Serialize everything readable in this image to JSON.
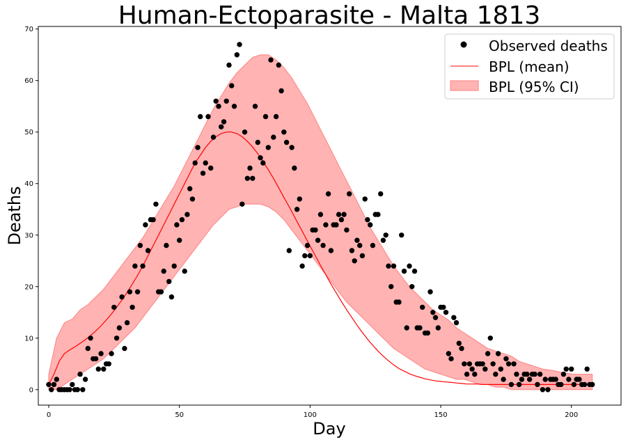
{
  "chart_data": {
    "type": "scatter",
    "title": "Human-Ectoparasite - Malta 1813",
    "xlabel": "Day",
    "ylabel": "Deaths",
    "xlim": [
      -4,
      219
    ],
    "ylim": [
      -3,
      70.5
    ],
    "xticks": [
      0,
      50,
      100,
      150,
      200
    ],
    "yticks": [
      0,
      10,
      20,
      30,
      40,
      50,
      60,
      70
    ],
    "grid": false,
    "legend_position": "top-right",
    "legend": [
      {
        "label": "Observed deaths",
        "marker": "dot",
        "color": "#000000"
      },
      {
        "label": "BPL (mean)",
        "marker": "line",
        "color": "#ff0000"
      },
      {
        "label": "BPL (95% CI)",
        "marker": "patch",
        "color": "#ff9999"
      }
    ],
    "observed": [
      [
        0,
        1
      ],
      [
        1,
        0
      ],
      [
        2,
        1
      ],
      [
        3,
        2
      ],
      [
        4,
        0
      ],
      [
        5,
        0
      ],
      [
        6,
        0
      ],
      [
        7,
        0
      ],
      [
        8,
        0
      ],
      [
        9,
        1
      ],
      [
        10,
        0
      ],
      [
        11,
        0
      ],
      [
        12,
        3
      ],
      [
        13,
        0
      ],
      [
        14,
        2
      ],
      [
        15,
        8
      ],
      [
        16,
        10
      ],
      [
        17,
        6
      ],
      [
        18,
        6
      ],
      [
        19,
        4
      ],
      [
        20,
        7
      ],
      [
        21,
        4
      ],
      [
        22,
        5
      ],
      [
        23,
        5
      ],
      [
        24,
        7
      ],
      [
        25,
        16
      ],
      [
        26,
        10
      ],
      [
        27,
        12
      ],
      [
        28,
        18
      ],
      [
        29,
        8
      ],
      [
        30,
        13
      ],
      [
        31,
        19
      ],
      [
        32,
        16
      ],
      [
        33,
        24
      ],
      [
        34,
        19
      ],
      [
        35,
        28
      ],
      [
        36,
        24
      ],
      [
        37,
        32
      ],
      [
        38,
        27
      ],
      [
        39,
        33
      ],
      [
        40,
        33
      ],
      [
        41,
        36
      ],
      [
        42,
        19
      ],
      [
        43,
        19
      ],
      [
        44,
        23
      ],
      [
        45,
        28
      ],
      [
        46,
        21
      ],
      [
        47,
        18
      ],
      [
        48,
        24
      ],
      [
        49,
        32
      ],
      [
        50,
        29
      ],
      [
        51,
        33
      ],
      [
        52,
        23
      ],
      [
        53,
        34
      ],
      [
        54,
        39
      ],
      [
        55,
        37
      ],
      [
        56,
        44
      ],
      [
        57,
        47
      ],
      [
        58,
        53
      ],
      [
        59,
        42
      ],
      [
        60,
        44
      ],
      [
        61,
        53
      ],
      [
        62,
        43
      ],
      [
        63,
        49
      ],
      [
        64,
        56
      ],
      [
        65,
        55
      ],
      [
        66,
        51
      ],
      [
        67,
        52
      ],
      [
        68,
        56
      ],
      [
        69,
        63
      ],
      [
        70,
        59
      ],
      [
        71,
        55
      ],
      [
        72,
        65
      ],
      [
        73,
        67
      ],
      [
        74,
        36
      ],
      [
        75,
        50
      ],
      [
        76,
        41
      ],
      [
        77,
        43
      ],
      [
        78,
        41
      ],
      [
        79,
        55
      ],
      [
        80,
        48
      ],
      [
        81,
        45
      ],
      [
        82,
        44
      ],
      [
        83,
        53
      ],
      [
        84,
        47
      ],
      [
        85,
        64
      ],
      [
        86,
        49
      ],
      [
        87,
        53
      ],
      [
        88,
        63
      ],
      [
        89,
        58
      ],
      [
        90,
        50
      ],
      [
        91,
        48
      ],
      [
        92,
        27
      ],
      [
        93,
        47
      ],
      [
        94,
        43
      ],
      [
        95,
        35
      ],
      [
        96,
        37
      ],
      [
        97,
        24
      ],
      [
        98,
        26
      ],
      [
        99,
        28
      ],
      [
        100,
        26
      ],
      [
        101,
        31
      ],
      [
        102,
        31
      ],
      [
        103,
        29
      ],
      [
        104,
        34
      ],
      [
        105,
        28
      ],
      [
        106,
        32
      ],
      [
        107,
        38
      ],
      [
        108,
        27
      ],
      [
        109,
        32
      ],
      [
        110,
        32
      ],
      [
        111,
        34
      ],
      [
        112,
        33
      ],
      [
        113,
        34
      ],
      [
        114,
        31
      ],
      [
        115,
        38
      ],
      [
        116,
        27
      ],
      [
        117,
        25
      ],
      [
        118,
        29
      ],
      [
        119,
        28
      ],
      [
        120,
        26
      ],
      [
        121,
        37
      ],
      [
        122,
        33
      ],
      [
        123,
        32
      ],
      [
        124,
        28
      ],
      [
        125,
        34
      ],
      [
        126,
        34
      ],
      [
        127,
        38
      ],
      [
        128,
        29
      ],
      [
        129,
        30
      ],
      [
        130,
        24
      ],
      [
        131,
        20
      ],
      [
        132,
        24
      ],
      [
        133,
        17
      ],
      [
        134,
        17
      ],
      [
        135,
        30
      ],
      [
        136,
        23
      ],
      [
        137,
        12
      ],
      [
        138,
        24
      ],
      [
        139,
        20
      ],
      [
        140,
        23
      ],
      [
        141,
        12
      ],
      [
        142,
        12
      ],
      [
        143,
        16
      ],
      [
        144,
        11
      ],
      [
        145,
        11
      ],
      [
        146,
        19
      ],
      [
        147,
        15
      ],
      [
        148,
        14
      ],
      [
        149,
        12
      ],
      [
        150,
        16
      ],
      [
        151,
        16
      ],
      [
        152,
        15
      ],
      [
        153,
        7
      ],
      [
        154,
        6
      ],
      [
        155,
        14
      ],
      [
        156,
        13
      ],
      [
        157,
        9
      ],
      [
        158,
        8
      ],
      [
        159,
        5
      ],
      [
        160,
        3
      ],
      [
        161,
        5
      ],
      [
        162,
        4
      ],
      [
        163,
        3
      ],
      [
        164,
        5
      ],
      [
        165,
        5
      ],
      [
        166,
        5
      ],
      [
        167,
        4
      ],
      [
        168,
        7
      ],
      [
        169,
        10
      ],
      [
        170,
        5
      ],
      [
        171,
        3
      ],
      [
        172,
        7
      ],
      [
        173,
        4
      ],
      [
        174,
        2
      ],
      [
        175,
        6
      ],
      [
        176,
        5
      ],
      [
        177,
        1
      ],
      [
        178,
        5
      ],
      [
        179,
        3
      ],
      [
        180,
        1
      ],
      [
        181,
        2
      ],
      [
        182,
        3
      ],
      [
        183,
        3
      ],
      [
        184,
        2
      ],
      [
        185,
        3
      ],
      [
        186,
        3
      ],
      [
        187,
        1
      ],
      [
        188,
        3
      ],
      [
        189,
        0
      ],
      [
        190,
        2
      ],
      [
        191,
        0
      ],
      [
        192,
        2
      ],
      [
        193,
        2
      ],
      [
        194,
        2
      ],
      [
        195,
        1
      ],
      [
        196,
        1
      ],
      [
        197,
        3
      ],
      [
        198,
        4
      ],
      [
        199,
        2
      ],
      [
        200,
        4
      ],
      [
        201,
        1
      ],
      [
        202,
        2
      ],
      [
        203,
        2
      ],
      [
        204,
        1
      ],
      [
        205,
        1
      ],
      [
        206,
        4
      ],
      [
        207,
        1
      ],
      [
        208,
        1
      ]
    ],
    "mean": [
      [
        0,
        1
      ],
      [
        2,
        3
      ],
      [
        4,
        5.5
      ],
      [
        6,
        7
      ],
      [
        8,
        7.7
      ],
      [
        10,
        8.3
      ],
      [
        12,
        9
      ],
      [
        14,
        9.7
      ],
      [
        16,
        10.5
      ],
      [
        18,
        11.4
      ],
      [
        20,
        12.4
      ],
      [
        22,
        13.5
      ],
      [
        24,
        14.7
      ],
      [
        26,
        16
      ],
      [
        28,
        17.4
      ],
      [
        30,
        18.9
      ],
      [
        32,
        20.5
      ],
      [
        34,
        22.2
      ],
      [
        36,
        24
      ],
      [
        38,
        26
      ],
      [
        40,
        28
      ],
      [
        42,
        30
      ],
      [
        44,
        32
      ],
      [
        46,
        34
      ],
      [
        48,
        36
      ],
      [
        50,
        38
      ],
      [
        52,
        40
      ],
      [
        54,
        42
      ],
      [
        56,
        44
      ],
      [
        58,
        45.5
      ],
      [
        60,
        47
      ],
      [
        62,
        48.2
      ],
      [
        64,
        49.1
      ],
      [
        66,
        49.7
      ],
      [
        68,
        50
      ],
      [
        70,
        50
      ],
      [
        72,
        49.7
      ],
      [
        74,
        49.1
      ],
      [
        76,
        48.2
      ],
      [
        78,
        47.1
      ],
      [
        80,
        45.8
      ],
      [
        82,
        44.3
      ],
      [
        84,
        42.7
      ],
      [
        86,
        41
      ],
      [
        88,
        39.2
      ],
      [
        90,
        37.3
      ],
      [
        92,
        35.5
      ],
      [
        94,
        33.6
      ],
      [
        96,
        31.7
      ],
      [
        98,
        29.8
      ],
      [
        100,
        27.9
      ],
      [
        102,
        26
      ],
      [
        104,
        24.1
      ],
      [
        106,
        22.3
      ],
      [
        108,
        20.5
      ],
      [
        110,
        18.8
      ],
      [
        112,
        17.1
      ],
      [
        114,
        15.5
      ],
      [
        116,
        14
      ],
      [
        118,
        12.5
      ],
      [
        120,
        11.1
      ],
      [
        122,
        9.8
      ],
      [
        124,
        8.6
      ],
      [
        126,
        7.5
      ],
      [
        128,
        6.5
      ],
      [
        130,
        5.6
      ],
      [
        132,
        4.8
      ],
      [
        134,
        4.1
      ],
      [
        136,
        3.6
      ],
      [
        138,
        3.1
      ],
      [
        140,
        2.7
      ],
      [
        142,
        2.4
      ],
      [
        144,
        2.1
      ],
      [
        146,
        1.9
      ],
      [
        148,
        1.7
      ],
      [
        150,
        1.6
      ],
      [
        152,
        1.5
      ],
      [
        154,
        1.4
      ],
      [
        156,
        1.3
      ],
      [
        158,
        1.2
      ],
      [
        160,
        1.1
      ],
      [
        162,
        1.1
      ],
      [
        164,
        1.1
      ],
      [
        166,
        1
      ],
      [
        168,
        1
      ],
      [
        170,
        1
      ],
      [
        172,
        1
      ],
      [
        174,
        1
      ],
      [
        176,
        1
      ],
      [
        178,
        1
      ],
      [
        180,
        1
      ],
      [
        182,
        1
      ],
      [
        184,
        1
      ],
      [
        186,
        1
      ],
      [
        188,
        1
      ],
      [
        190,
        1
      ],
      [
        192,
        1
      ],
      [
        194,
        1
      ],
      [
        196,
        1
      ],
      [
        198,
        1
      ],
      [
        200,
        1
      ],
      [
        202,
        1
      ],
      [
        204,
        1
      ],
      [
        206,
        1
      ],
      [
        208,
        1
      ]
    ],
    "ci_upper": [
      [
        0,
        3
      ],
      [
        3,
        10
      ],
      [
        6,
        13
      ],
      [
        9,
        13.7
      ],
      [
        12,
        15.5
      ],
      [
        15,
        16.5
      ],
      [
        18,
        18
      ],
      [
        21,
        19.5
      ],
      [
        24,
        21.5
      ],
      [
        27,
        23.5
      ],
      [
        30,
        25.5
      ],
      [
        33,
        27.5
      ],
      [
        36,
        29.5
      ],
      [
        39,
        32
      ],
      [
        42,
        34.5
      ],
      [
        45,
        37
      ],
      [
        48,
        39.5
      ],
      [
        51,
        42.5
      ],
      [
        54,
        45.5
      ],
      [
        57,
        48.5
      ],
      [
        60,
        51.5
      ],
      [
        63,
        54.5
      ],
      [
        66,
        57
      ],
      [
        69,
        59.5
      ],
      [
        72,
        61.5
      ],
      [
        75,
        63
      ],
      [
        78,
        64.5
      ],
      [
        81,
        65
      ],
      [
        84,
        65
      ],
      [
        87,
        64
      ],
      [
        90,
        62.5
      ],
      [
        93,
        60.5
      ],
      [
        96,
        58
      ],
      [
        99,
        55.5
      ],
      [
        102,
        52.5
      ],
      [
        105,
        49.5
      ],
      [
        108,
        46.5
      ],
      [
        111,
        43.5
      ],
      [
        114,
        40.5
      ],
      [
        117,
        37.5
      ],
      [
        120,
        34.5
      ],
      [
        123,
        31.5
      ],
      [
        126,
        29
      ],
      [
        129,
        26.5
      ],
      [
        132,
        24
      ],
      [
        135,
        22
      ],
      [
        138,
        20
      ],
      [
        141,
        18.5
      ],
      [
        144,
        17
      ],
      [
        147,
        15.5
      ],
      [
        150,
        14.5
      ],
      [
        153,
        13.5
      ],
      [
        156,
        12
      ],
      [
        159,
        11
      ],
      [
        162,
        10
      ],
      [
        165,
        9
      ],
      [
        168,
        8
      ],
      [
        171,
        7.5
      ],
      [
        174,
        7
      ],
      [
        177,
        6.5
      ],
      [
        180,
        5.5
      ],
      [
        183,
        5
      ],
      [
        186,
        4.5
      ],
      [
        189,
        4
      ],
      [
        192,
        3.8
      ],
      [
        195,
        3.5
      ],
      [
        198,
        3.2
      ],
      [
        201,
        3
      ],
      [
        204,
        3
      ],
      [
        207,
        3
      ],
      [
        208,
        3
      ]
    ],
    "ci_lower": [
      [
        0,
        0
      ],
      [
        3,
        0
      ],
      [
        6,
        1
      ],
      [
        9,
        2
      ],
      [
        12,
        3
      ],
      [
        15,
        4
      ],
      [
        18,
        5
      ],
      [
        21,
        6
      ],
      [
        24,
        7.5
      ],
      [
        27,
        9
      ],
      [
        30,
        10.5
      ],
      [
        33,
        12
      ],
      [
        36,
        14
      ],
      [
        39,
        16
      ],
      [
        42,
        18
      ],
      [
        45,
        20
      ],
      [
        48,
        22
      ],
      [
        51,
        24
      ],
      [
        54,
        26
      ],
      [
        57,
        28
      ],
      [
        60,
        30
      ],
      [
        63,
        32
      ],
      [
        66,
        33.5
      ],
      [
        69,
        35
      ],
      [
        72,
        35.5
      ],
      [
        75,
        36
      ],
      [
        78,
        36
      ],
      [
        81,
        36
      ],
      [
        84,
        35.5
      ],
      [
        87,
        34.5
      ],
      [
        90,
        33
      ],
      [
        93,
        31
      ],
      [
        96,
        29
      ],
      [
        99,
        27
      ],
      [
        102,
        25
      ],
      [
        105,
        23
      ],
      [
        108,
        21
      ],
      [
        111,
        19
      ],
      [
        114,
        17
      ],
      [
        117,
        15.5
      ],
      [
        120,
        14
      ],
      [
        123,
        12.5
      ],
      [
        126,
        11
      ],
      [
        129,
        9.5
      ],
      [
        132,
        8
      ],
      [
        135,
        7
      ],
      [
        138,
        6
      ],
      [
        141,
        5
      ],
      [
        144,
        4
      ],
      [
        147,
        3.5
      ],
      [
        150,
        3
      ],
      [
        153,
        2.5
      ],
      [
        156,
        2
      ],
      [
        159,
        2
      ],
      [
        162,
        1.5
      ],
      [
        165,
        1
      ],
      [
        168,
        1
      ],
      [
        171,
        0.5
      ],
      [
        174,
        0.5
      ],
      [
        177,
        0
      ],
      [
        180,
        0
      ],
      [
        183,
        0
      ],
      [
        186,
        0
      ],
      [
        189,
        0
      ],
      [
        192,
        0
      ],
      [
        195,
        0
      ],
      [
        198,
        0
      ],
      [
        201,
        0
      ],
      [
        204,
        0
      ],
      [
        207,
        0
      ],
      [
        208,
        0
      ]
    ]
  }
}
